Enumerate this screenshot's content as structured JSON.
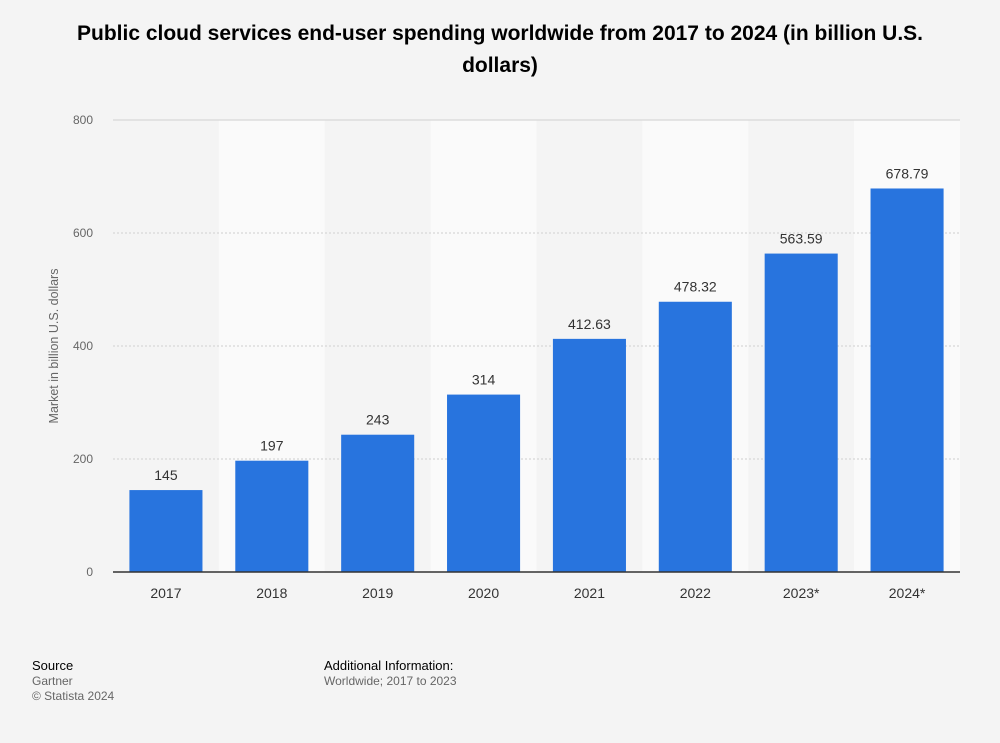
{
  "chart_data": {
    "type": "bar",
    "title": "Public cloud services end-user spending worldwide from 2017 to 2024 (in billion U.S. dollars)",
    "xlabel": "",
    "ylabel": "Market in billion U.S. dollars",
    "categories": [
      "2017",
      "2018",
      "2019",
      "2020",
      "2021",
      "2022",
      "2023*",
      "2024*"
    ],
    "values": [
      145,
      197,
      243,
      314,
      412.63,
      478.32,
      563.59,
      678.79
    ],
    "value_labels": [
      "145",
      "197",
      "243",
      "314",
      "412.63",
      "478.32",
      "563.59",
      "678.79"
    ],
    "ylim": [
      0,
      800
    ],
    "yticks": [
      0,
      200,
      400,
      600,
      800
    ],
    "grid": true,
    "bar_color": "#2874de"
  },
  "footer": {
    "source_heading": "Source",
    "source_name": "Gartner",
    "copyright": "© Statista 2024",
    "info_heading": "Additional Information:",
    "info_text": "Worldwide; 2017 to 2023"
  }
}
